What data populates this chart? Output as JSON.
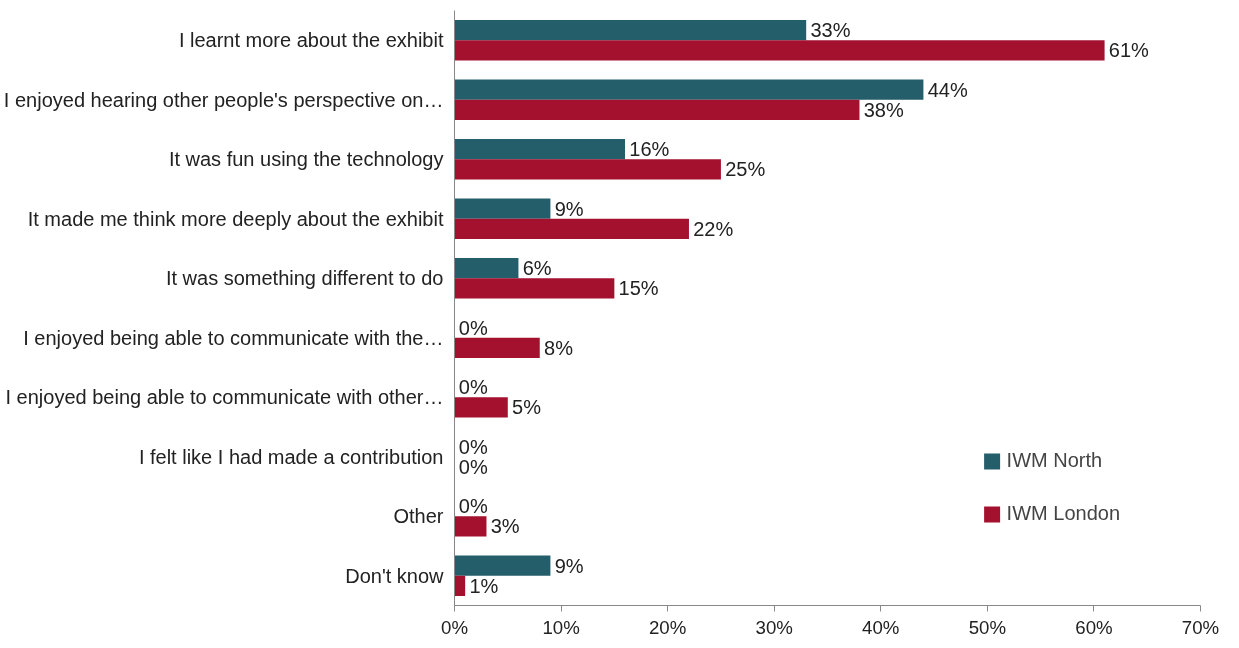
{
  "chart_data": {
    "type": "bar",
    "orientation": "horizontal",
    "categories": [
      "I learnt more about the exhibit",
      "I enjoyed hearing other people's perspective on…",
      "It was fun using the technology",
      "It made me think more deeply about the exhibit",
      "It was something different to do",
      "I enjoyed being able to communicate with the…",
      "I enjoyed being able to communicate with other…",
      "I felt like I had made a contribution",
      "Other",
      "Don't know"
    ],
    "series": [
      {
        "name": "IWM North",
        "color": "#255e6b",
        "values": [
          33,
          44,
          16,
          9,
          6,
          0,
          0,
          0,
          0,
          9
        ],
        "value_labels": [
          "33%",
          "44%",
          "16%",
          "9%",
          "6%",
          "0%",
          "0%",
          "0%",
          "0%",
          "9%"
        ]
      },
      {
        "name": "IWM London",
        "color": "#a3112f",
        "values": [
          61,
          38,
          25,
          22,
          15,
          8,
          5,
          0,
          3,
          1
        ],
        "value_labels": [
          "61%",
          "38%",
          "25%",
          "22%",
          "15%",
          "8%",
          "5%",
          "0%",
          "3%",
          "1%"
        ]
      }
    ],
    "xlim": [
      0,
      70
    ],
    "xticks": [
      {
        "value": 0,
        "label": "0%"
      },
      {
        "value": 10,
        "label": "10%"
      },
      {
        "value": 20,
        "label": "20%"
      },
      {
        "value": 30,
        "label": "30%"
      },
      {
        "value": 40,
        "label": "40%"
      },
      {
        "value": 50,
        "label": "50%"
      },
      {
        "value": 60,
        "label": "60%"
      },
      {
        "value": 70,
        "label": "70%"
      }
    ],
    "grid": false,
    "legend": "bottom right"
  }
}
